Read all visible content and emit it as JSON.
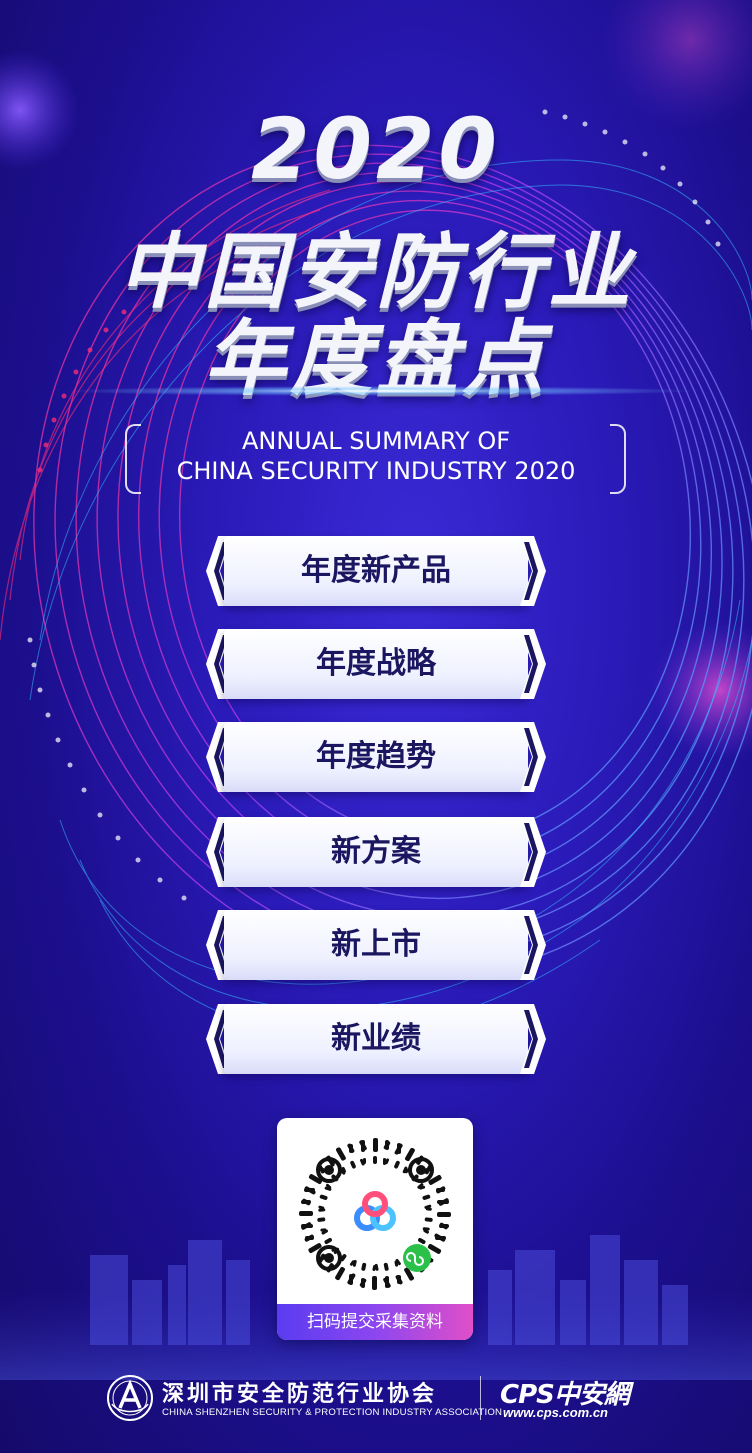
{
  "title": {
    "year": "2020",
    "line2": "中国安防行业",
    "line3": "年度盘点"
  },
  "subtitle": {
    "line1": "ANNUAL SUMMARY OF",
    "line2": "CHINA SECURITY INDUSTRY 2020"
  },
  "menu": {
    "items": [
      {
        "label": "年度新产品"
      },
      {
        "label": "年度战略"
      },
      {
        "label": "年度趋势"
      },
      {
        "label": "新方案"
      },
      {
        "label": "新上市"
      },
      {
        "label": "新业绩"
      }
    ]
  },
  "qr": {
    "caption": "扫码提交采集资料"
  },
  "footer": {
    "association_cn": "深圳市安全防范行业协会",
    "association_en": "CHINA SHENZHEN SECURITY & PROTECTION INDUSTRY ASSOCIATION",
    "brand": "CPS中安網",
    "url": "www.cps.com.cn"
  },
  "colors": {
    "background": "#2a1ab8",
    "accent_cyan": "#36b8ff",
    "accent_magenta": "#ff2d7a",
    "button_text": "#1a1660"
  }
}
